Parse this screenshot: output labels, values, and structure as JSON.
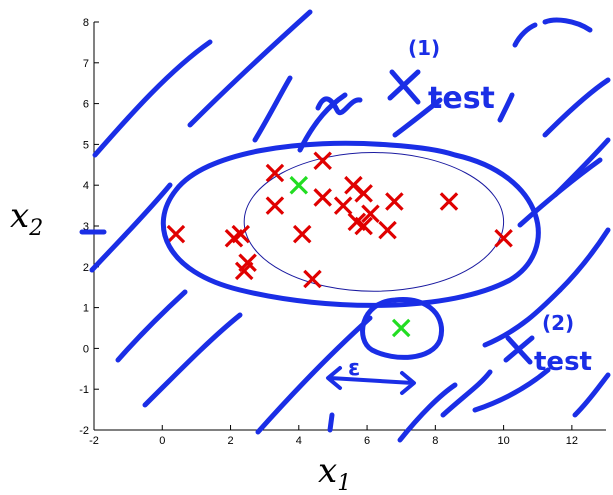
{
  "chart_data": {
    "type": "scatter",
    "xlim": [
      -2,
      13
    ],
    "ylim": [
      -2,
      8
    ],
    "xticks": [
      -2,
      0,
      2,
      4,
      6,
      8,
      10,
      12
    ],
    "yticks": [
      -2,
      -1,
      0,
      1,
      2,
      3,
      4,
      5,
      6,
      7,
      8
    ],
    "xlabel": "x_1",
    "ylabel": "x_2",
    "grid": false,
    "series": [
      {
        "marker": "x",
        "color": "#e00000",
        "points": [
          [
            0.4,
            2.8
          ],
          [
            2.1,
            2.7
          ],
          [
            2.3,
            2.8
          ],
          [
            2.5,
            2.1
          ],
          [
            2.4,
            1.9
          ],
          [
            3.3,
            4.3
          ],
          [
            3.3,
            3.5
          ],
          [
            4.1,
            2.8
          ],
          [
            4.4,
            1.7
          ],
          [
            4.7,
            4.6
          ],
          [
            4.7,
            3.7
          ],
          [
            5.3,
            3.5
          ],
          [
            5.6,
            4.0
          ],
          [
            5.7,
            3.1
          ],
          [
            5.9,
            3.0
          ],
          [
            5.9,
            3.8
          ],
          [
            6.1,
            3.3
          ],
          [
            6.6,
            2.9
          ],
          [
            6.8,
            3.6
          ],
          [
            8.4,
            3.6
          ],
          [
            10.0,
            2.7
          ]
        ]
      },
      {
        "marker": "x",
        "color": "#22dd22",
        "points": [
          [
            4.0,
            4.0
          ],
          [
            7.0,
            0.5
          ]
        ]
      }
    ],
    "fitted_contour": {
      "center": [
        6.2,
        3.1
      ],
      "radii": [
        3.8,
        1.7
      ],
      "color": "#1a1aa0"
    },
    "annotations": [
      {
        "text": "test",
        "superscript": "(1)",
        "marker": "x"
      },
      {
        "text": "test",
        "superscript": "(2)",
        "marker": "x"
      },
      {
        "text": "ε"
      }
    ]
  },
  "colors": {
    "ink": "#1a2ee6"
  }
}
